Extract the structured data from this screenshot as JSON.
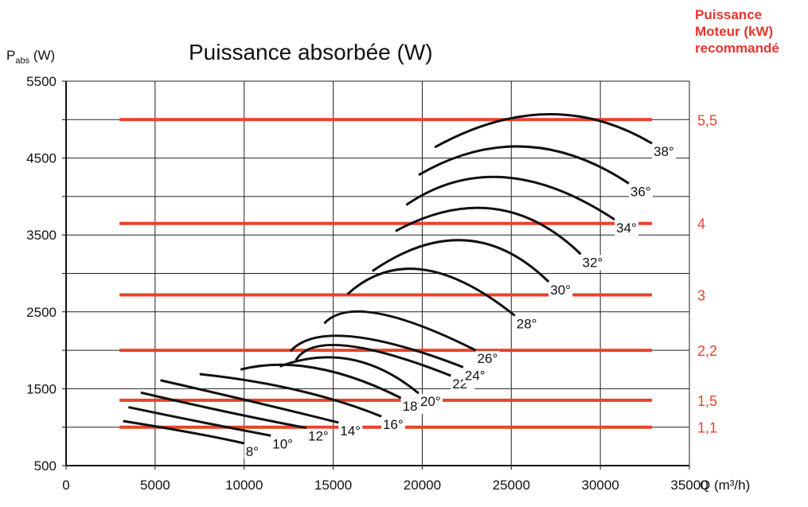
{
  "chart_data": {
    "type": "line",
    "title": "Puissance absorbée (W)",
    "ylabel_main": "P",
    "ylabel_sub": "abs",
    "ylabel_unit": " (W)",
    "xlabel": "Q (m³/h)",
    "right_title_lines": [
      "Puissance",
      "Moteur (kW)",
      "recommandé"
    ],
    "xlim": [
      0,
      35000
    ],
    "ylim": [
      500,
      5500
    ],
    "x_ticks": [
      "0",
      "5000",
      "10000",
      "15000",
      "20000",
      "25000",
      "30000",
      "35000"
    ],
    "y_ticks": [
      "500",
      "1500",
      "2500",
      "3500",
      "4500",
      "5500"
    ],
    "grid": true,
    "motor_lines": [
      {
        "label": "1,1",
        "y": 1000
      },
      {
        "label": "1,5",
        "y": 1350
      },
      {
        "label": "2,2",
        "y": 2000
      },
      {
        "label": "3",
        "y": 2720
      },
      {
        "label": "4",
        "y": 3650
      },
      {
        "label": "5,5",
        "y": 5000
      }
    ],
    "series": [
      {
        "name": "8°",
        "points": [
          [
            3200,
            1080
          ],
          [
            7000,
            930
          ],
          [
            10000,
            790
          ]
        ]
      },
      {
        "name": "10°",
        "points": [
          [
            3500,
            1260
          ],
          [
            7500,
            1070
          ],
          [
            11500,
            890
          ]
        ]
      },
      {
        "name": "12°",
        "points": [
          [
            4200,
            1450
          ],
          [
            9000,
            1200
          ],
          [
            13500,
            990
          ]
        ]
      },
      {
        "name": "14°",
        "points": [
          [
            5300,
            1610
          ],
          [
            10500,
            1330
          ],
          [
            15300,
            1060
          ]
        ]
      },
      {
        "name": "16°",
        "points": [
          [
            7500,
            1690
          ],
          [
            13000,
            1480
          ],
          [
            17700,
            1140
          ]
        ]
      },
      {
        "name": "18°",
        "points": [
          [
            9800,
            1750
          ],
          [
            14000,
            1770
          ],
          [
            18800,
            1380
          ]
        ]
      },
      {
        "name": "20°",
        "points": [
          [
            12000,
            1790
          ],
          [
            16000,
            1880
          ],
          [
            19800,
            1440
          ]
        ]
      },
      {
        "name": "22°",
        "points": [
          [
            12900,
            1870
          ],
          [
            15700,
            2060
          ],
          [
            21600,
            1670
          ]
        ]
      },
      {
        "name": "24°",
        "points": [
          [
            12600,
            1990
          ],
          [
            16000,
            2180
          ],
          [
            22300,
            1780
          ]
        ]
      },
      {
        "name": "26°",
        "points": [
          [
            14500,
            2350
          ],
          [
            17500,
            2480
          ],
          [
            23000,
            2000
          ]
        ]
      },
      {
        "name": "28°",
        "points": [
          [
            15800,
            2730
          ],
          [
            20000,
            3050
          ],
          [
            25200,
            2450
          ]
        ]
      },
      {
        "name": "30°",
        "points": [
          [
            17200,
            3030
          ],
          [
            22400,
            3430
          ],
          [
            27100,
            2890
          ]
        ]
      },
      {
        "name": "32°",
        "points": [
          [
            18500,
            3550
          ],
          [
            24000,
            3840
          ],
          [
            28900,
            3250
          ]
        ]
      },
      {
        "name": "34°",
        "points": [
          [
            19100,
            3890
          ],
          [
            24600,
            4250
          ],
          [
            30800,
            3700
          ]
        ]
      },
      {
        "name": "36°",
        "points": [
          [
            19800,
            4280
          ],
          [
            25700,
            4650
          ],
          [
            31600,
            4170
          ]
        ]
      },
      {
        "name": "38°",
        "points": [
          [
            20700,
            4640
          ],
          [
            27000,
            5070
          ],
          [
            32900,
            4690
          ]
        ]
      }
    ],
    "colors": {
      "curve": "#111111",
      "motor": "#e8432d",
      "motor_text": "#e8432d",
      "grid": "#222222"
    }
  }
}
